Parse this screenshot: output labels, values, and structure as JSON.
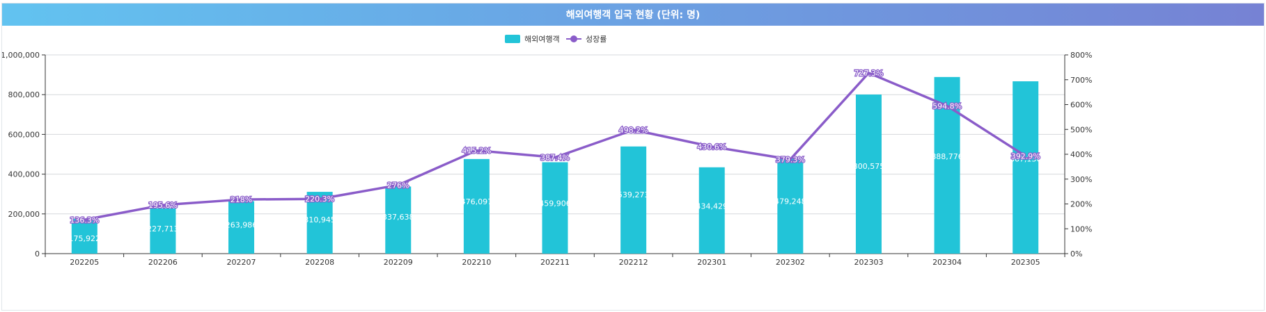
{
  "title": "해외여행객 입국 현황 (단위: 명)",
  "colors": {
    "bar": "#22c4d8",
    "line": "#8a5cc9"
  },
  "chart_data": {
    "type": "bar",
    "title": "해외여행객 입국 현황 (단위: 명)",
    "legend": {
      "placement": "top-center",
      "entries": [
        "해외여행객",
        "성장률"
      ]
    },
    "grid": true,
    "categories": [
      "202205",
      "202206",
      "202207",
      "202208",
      "202209",
      "202210",
      "202211",
      "202212",
      "202301",
      "202302",
      "202303",
      "202304",
      "202305"
    ],
    "series": [
      {
        "name": "해외여행객",
        "type": "bar",
        "axis": "left",
        "values": [
          175922,
          227713,
          263986,
          310945,
          337638,
          476097,
          459906,
          539273,
          434429,
          479248,
          800575,
          888776,
          867130
        ],
        "labels": [
          "175,922",
          "227,713",
          "263,986",
          "310,945",
          "337,638",
          "476,097",
          "459,906",
          "539,273",
          "434,429",
          "479,248",
          "800,575",
          "888,776",
          "867,130"
        ]
      },
      {
        "name": "성장률",
        "type": "line",
        "axis": "right",
        "values": [
          136.3,
          195.6,
          218,
          220.3,
          276,
          415.2,
          387.4,
          498.2,
          430.6,
          379.3,
          727.3,
          594.8,
          392.9
        ],
        "labels": [
          "136.3%",
          "195.6%",
          "218%",
          "220.3%",
          "276%",
          "415.2%",
          "387.4%",
          "498.2%",
          "430.6%",
          "379.3%",
          "727.3%",
          "594.8%",
          "392.9%"
        ]
      }
    ],
    "y_left": {
      "ylim": [
        0,
        1000000
      ],
      "ticks": [
        0,
        200000,
        400000,
        600000,
        800000,
        1000000
      ],
      "tick_labels": [
        "0",
        "200,000",
        "400,000",
        "600,000",
        "800,000",
        "1,000,000"
      ]
    },
    "y_right": {
      "ylim": [
        0,
        800
      ],
      "ticks": [
        0,
        100,
        200,
        300,
        400,
        500,
        600,
        700,
        800
      ],
      "tick_labels": [
        "0%",
        "100%",
        "200%",
        "300%",
        "400%",
        "500%",
        "600%",
        "700%",
        "800%"
      ]
    }
  }
}
